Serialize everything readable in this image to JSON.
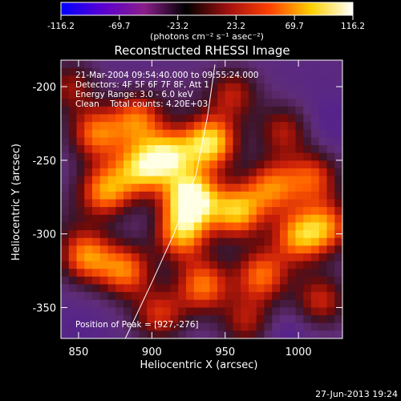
{
  "chart_data": {
    "type": "heatmap",
    "title": "Reconstructed RHESSI Image",
    "xlabel": "Heliocentric X (arcsec)",
    "ylabel": "Heliocentric Y (arcsec)",
    "xlim": [
      838,
      1030
    ],
    "ylim": [
      -371,
      -182
    ],
    "x_ticks": [
      850,
      900,
      950,
      1000
    ],
    "y_ticks": [
      -200,
      -250,
      -300,
      -350
    ],
    "colorbar": {
      "ticks": [
        "-116.2",
        "-69.7",
        "-23.2",
        "23.2",
        "69.7",
        "116.2"
      ],
      "range": [
        -116.2,
        116.2
      ],
      "unit_label": "(photons cm⁻² s⁻¹ asec⁻²)",
      "colors": [
        "#0000ff",
        "#5a00d0",
        "#8a1e8a",
        "#000000",
        "#a01010",
        "#ff4000",
        "#ffd000",
        "#ffffff"
      ]
    },
    "info_lines": [
      "21-Mar-2004 09:54:40.000 to 09:55:24.000",
      "Detectors: 4F 5F 6F 7F 8F, Att 1",
      "Energy Range: 3.0 - 6.0 keV",
      "Clean    Total counts: 4.20E+03"
    ],
    "peak_label": "Position of Peak = [927,-276]",
    "peak": [
      927,
      -276
    ],
    "sources": [
      {
        "x": 927,
        "y": -276,
        "v": 116
      },
      {
        "x": 940,
        "y": -238,
        "v": 95
      },
      {
        "x": 912,
        "y": -247,
        "v": 75
      },
      {
        "x": 892,
        "y": -256,
        "v": 70
      },
      {
        "x": 868,
        "y": -271,
        "v": 68
      },
      {
        "x": 862,
        "y": -232,
        "v": 58
      },
      {
        "x": 890,
        "y": -222,
        "v": 55
      },
      {
        "x": 855,
        "y": -315,
        "v": 65
      },
      {
        "x": 882,
        "y": -325,
        "v": 60
      },
      {
        "x": 920,
        "y": -300,
        "v": 70
      },
      {
        "x": 958,
        "y": -285,
        "v": 80
      },
      {
        "x": 982,
        "y": -268,
        "v": 55
      },
      {
        "x": 1010,
        "y": -262,
        "v": 45
      },
      {
        "x": 1000,
        "y": -302,
        "v": 62
      },
      {
        "x": 1020,
        "y": -295,
        "v": 50
      },
      {
        "x": 935,
        "y": -335,
        "v": 62
      },
      {
        "x": 975,
        "y": -328,
        "v": 58
      },
      {
        "x": 905,
        "y": -355,
        "v": 38
      },
      {
        "x": 955,
        "y": -205,
        "v": 30
      },
      {
        "x": 990,
        "y": -230,
        "v": 28
      },
      {
        "x": 1015,
        "y": -345,
        "v": 35
      },
      {
        "x": 965,
        "y": -360,
        "v": 28
      },
      {
        "x": 845,
        "y": -200,
        "v": 22
      },
      {
        "x": 1005,
        "y": -200,
        "v": -40
      },
      {
        "x": 1020,
        "y": -225,
        "v": -55
      },
      {
        "x": 850,
        "y": -365,
        "v": -50
      },
      {
        "x": 990,
        "y": -370,
        "v": -60
      },
      {
        "x": 918,
        "y": -205,
        "v": -25
      },
      {
        "x": 840,
        "y": -290,
        "v": -20
      }
    ],
    "limb_curve": [
      [
        943,
        -185
      ],
      [
        938,
        -220
      ],
      [
        930,
        -260
      ],
      [
        915,
        -300
      ],
      [
        900,
        -333
      ],
      [
        880,
        -375
      ]
    ]
  },
  "footer": {
    "timestamp": "27-Jun-2013 19:24"
  }
}
